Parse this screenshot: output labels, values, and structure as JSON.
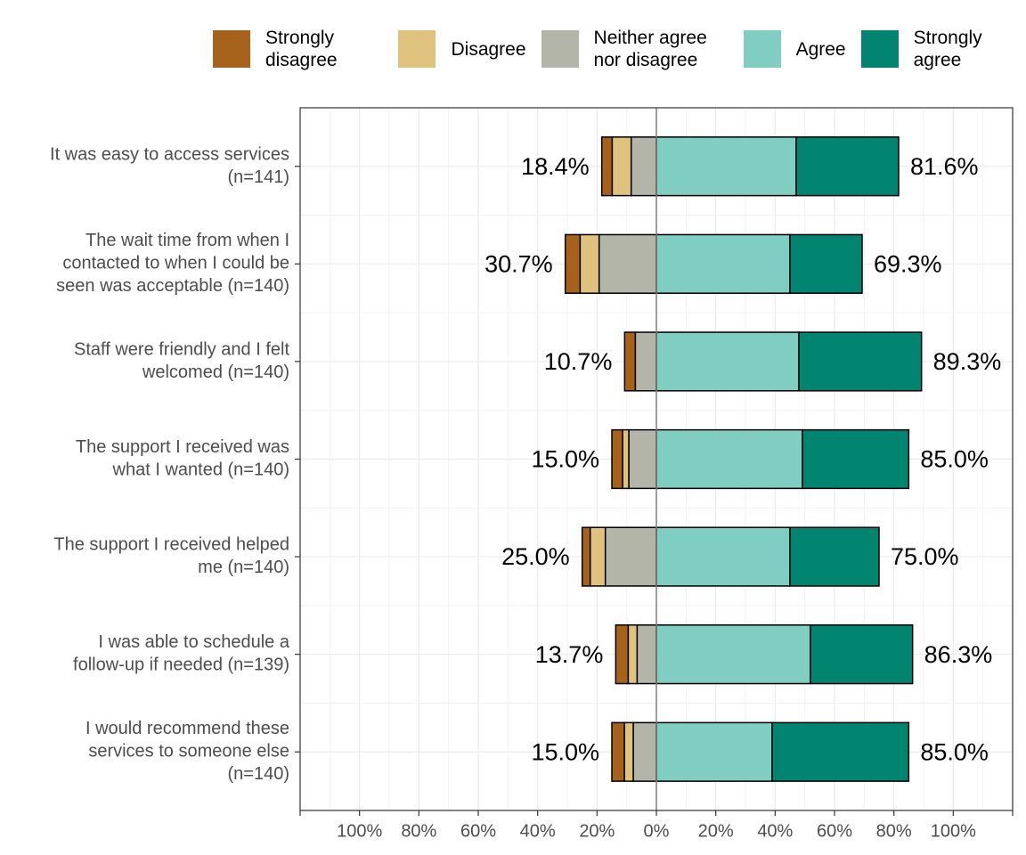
{
  "chart_data": {
    "type": "diverging-bar",
    "categories": [
      [
        "It was easy to access services",
        "(n=141)"
      ],
      [
        "The wait time from when I",
        "contacted to when I could be",
        "seen was acceptable (n=140)"
      ],
      [
        "Staff were friendly and I felt",
        "welcomed (n=140)"
      ],
      [
        "The support I received was",
        "what I wanted (n=140)"
      ],
      [
        "The support I received helped",
        "me (n=140)"
      ],
      [
        "I was able to schedule a",
        "follow-up if needed  (n=139)"
      ],
      [
        "I would recommend these",
        "services to someone else",
        "(n=140)"
      ]
    ],
    "series": [
      {
        "name": "Strongly disagree",
        "color": "#a6611a",
        "values": [
          3.5,
          5.0,
          3.6,
          3.6,
          2.7,
          4.2,
          4.2
        ]
      },
      {
        "name": "Disagree",
        "color": "#dfc27d",
        "values": [
          6.4,
          6.4,
          0,
          2.1,
          5.1,
          3.0,
          3.0
        ]
      },
      {
        "name": "Neither agree nor disagree",
        "color": "#b3b5a8",
        "values": [
          8.5,
          19.3,
          7.1,
          9.3,
          17.2,
          6.5,
          7.8
        ]
      },
      {
        "name": "Agree",
        "color": "#80cdc1",
        "values": [
          47.1,
          45.0,
          48.0,
          49.2,
          45.0,
          51.9,
          39.0
        ]
      },
      {
        "name": "Strongly agree",
        "color": "#018571",
        "values": [
          34.5,
          24.3,
          41.3,
          35.8,
          30.0,
          34.4,
          46.0
        ]
      }
    ],
    "totals": {
      "disagree": {
        "values": [
          18.4,
          30.7,
          10.7,
          15.0,
          25.0,
          13.7,
          15.0
        ],
        "value_labels": [
          "18.4%",
          "30.7%",
          "10.7%",
          "15.0%",
          "25.0%",
          "13.7%",
          "15.0%"
        ]
      },
      "agree": {
        "values": [
          81.6,
          69.3,
          89.3,
          85.0,
          75.0,
          86.3,
          85.0
        ],
        "value_labels": [
          "81.6%",
          "69.3%",
          "89.3%",
          "85.0%",
          "75.0%",
          "86.3%",
          "85.0%"
        ]
      }
    },
    "xlim": [
      -120,
      120
    ],
    "xticks": [
      {
        "value": -100,
        "label": "100%"
      },
      {
        "value": -80,
        "label": "80%"
      },
      {
        "value": -60,
        "label": "60%"
      },
      {
        "value": -40,
        "label": "40%"
      },
      {
        "value": -20,
        "label": "20%"
      },
      {
        "value": 0,
        "label": "0%"
      },
      {
        "value": 20,
        "label": "20%"
      },
      {
        "value": 40,
        "label": "40%"
      },
      {
        "value": 60,
        "label": "60%"
      },
      {
        "value": 80,
        "label": "80%"
      },
      {
        "value": 100,
        "label": "100%"
      }
    ],
    "grid": true,
    "legend": "top"
  }
}
